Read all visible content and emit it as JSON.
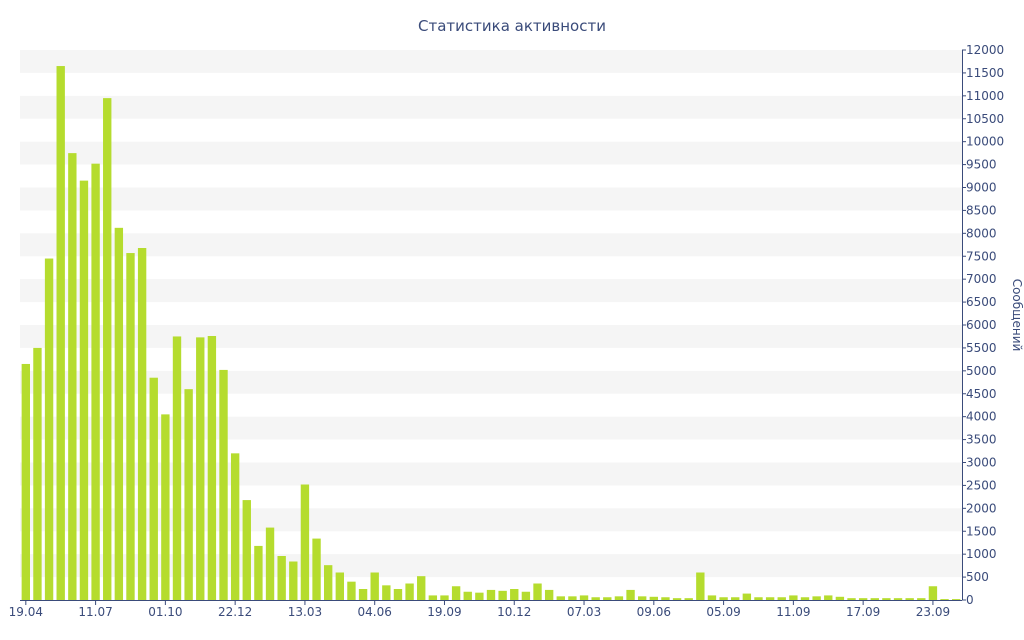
{
  "chart_data": {
    "type": "bar",
    "title": "Статистика активности",
    "ylabel": "Сообщений",
    "xlabel": "",
    "ylim": [
      0,
      12000
    ],
    "ytick_step": 500,
    "y_axis_side": "right",
    "grid": "horizontal bands",
    "legend": "none",
    "x_tick_labels": [
      "19.04",
      "11.07",
      "01.10",
      "22.12",
      "13.03",
      "04.06",
      "19.09",
      "10.12",
      "07.03",
      "09.06",
      "05.09",
      "11.09",
      "17.09",
      "23.09"
    ],
    "x_tick_positions": [
      0,
      6,
      12,
      18,
      24,
      30,
      36,
      42,
      48,
      54,
      60,
      66,
      72,
      78
    ],
    "values": [
      5150,
      5500,
      7450,
      11650,
      9750,
      9150,
      9520,
      10950,
      8120,
      7570,
      7680,
      4850,
      4050,
      5750,
      4600,
      5730,
      5760,
      5020,
      3200,
      2180,
      1180,
      1580,
      960,
      840,
      2520,
      1340,
      760,
      600,
      400,
      240,
      600,
      320,
      240,
      360,
      520,
      100,
      100,
      300,
      180,
      160,
      220,
      200,
      240,
      180,
      360,
      220,
      80,
      80,
      100,
      60,
      60,
      80,
      220,
      80,
      70,
      60,
      40,
      40,
      600,
      100,
      60,
      60,
      140,
      60,
      60,
      60,
      100,
      60,
      80,
      100,
      70,
      40,
      40,
      40,
      40,
      40,
      40,
      40,
      300,
      20,
      20
    ],
    "bar_color": "#b5dc2e",
    "band_color": "#f5f5f5",
    "text_color": "#3a4b7a"
  }
}
